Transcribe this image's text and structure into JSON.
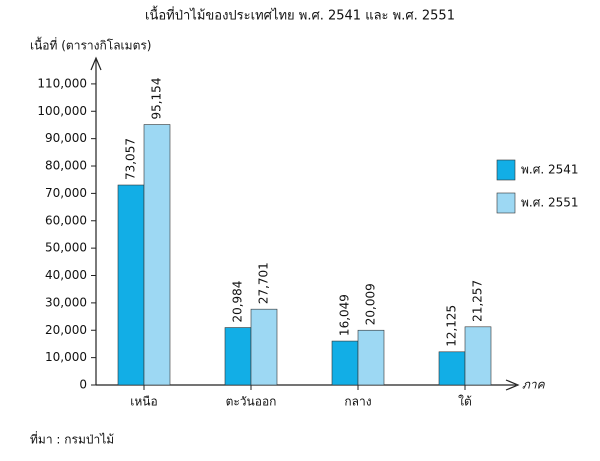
{
  "chart_data": {
    "type": "bar",
    "title": "เนื้อที่ป่าไม้ของประเทศไทย  พ.ศ. 2541  และ พ.ศ. 2551",
    "y_label": "เนื้อที่ (ตารางกิโลเมตร)",
    "x_label": "ภาค",
    "source": "ที่มา : กรมป่าไม้",
    "categories": [
      "เหนือ",
      "ตะวันออก",
      "กลาง",
      "ใต้"
    ],
    "series": [
      {
        "name": "พ.ศ. 2541",
        "color": "#12aee6",
        "values": [
          73057,
          20984,
          16049,
          12125
        ],
        "value_labels": [
          "73,057",
          "20,984",
          "16,049",
          "12,125"
        ]
      },
      {
        "name": "พ.ศ. 2551",
        "color": "#9dd8f3",
        "values": [
          95154,
          27701,
          20009,
          21257
        ],
        "value_labels": [
          "95,154",
          "27,701",
          "20,009",
          "21,257"
        ]
      }
    ],
    "ylim": [
      0,
      118000
    ],
    "yticks": [
      0,
      {
        "value": 10000,
        "label": "10,000"
      },
      {
        "value": 20000,
        "label": "20,000"
      },
      {
        "value": 30000,
        "label": "30,000"
      },
      {
        "value": 40000,
        "label": "40,000"
      },
      {
        "value": 50000,
        "label": "50,000"
      },
      {
        "value": 60000,
        "label": "60,000"
      },
      {
        "value": 70000,
        "label": "70,000"
      },
      {
        "value": 80000,
        "label": "80,000"
      },
      {
        "value": 90000,
        "label": "90,000"
      },
      {
        "value": 100000,
        "label": "100,000"
      },
      {
        "value": 110000,
        "label": "110,000"
      }
    ],
    "legend": "right"
  }
}
